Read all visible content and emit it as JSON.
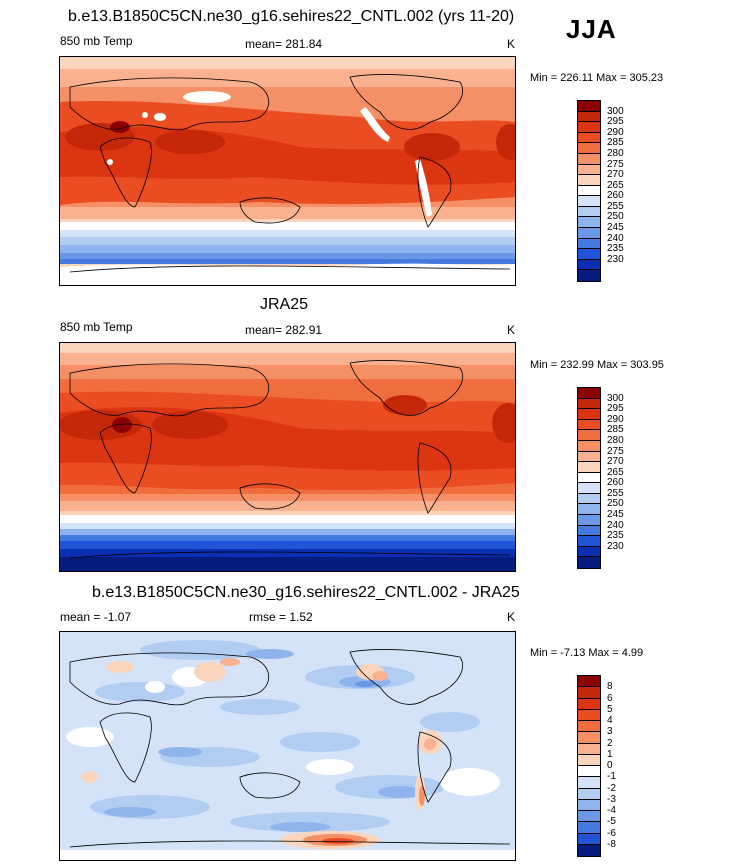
{
  "season": "JJA",
  "panels": [
    {
      "title": "b.e13.B1850C5CN.ne30_g16.sehires22_CNTL.002 (yrs 11-20)",
      "left_label": "850 mb Temp",
      "center_label": "mean= 281.84",
      "units": "K",
      "minmax": "Min = 226.11 Max = 305.23",
      "levels": [
        "300",
        "295",
        "290",
        "285",
        "280",
        "275",
        "270",
        "265",
        "260",
        "255",
        "250",
        "245",
        "240",
        "235",
        "230"
      ],
      "colors": [
        "#8b0000",
        "#c52808",
        "#dc3512",
        "#ea4d22",
        "#f06d3e",
        "#f58f66",
        "#f9b18f",
        "#fbd4bc",
        "#ffffff",
        "#d4e3f7",
        "#b1cdf2",
        "#8eb3ed",
        "#6a97e6",
        "#4479e0",
        "#2155d7",
        "#0b2fb2",
        "#051b7e"
      ],
      "chart_data": {
        "type": "heatmap",
        "field": "850 mb Temp",
        "units": "K",
        "mean": 281.84,
        "min": 226.11,
        "max": 305.23,
        "contour_levels": [
          230,
          235,
          240,
          245,
          250,
          255,
          260,
          265,
          270,
          275,
          280,
          285,
          290,
          295,
          300
        ]
      }
    },
    {
      "title": "JRA25",
      "left_label": "850 mb Temp",
      "center_label": "mean= 282.91",
      "units": "K",
      "minmax": "Min = 232.99 Max = 303.95",
      "levels": [
        "300",
        "295",
        "290",
        "285",
        "280",
        "275",
        "270",
        "265",
        "260",
        "255",
        "250",
        "245",
        "240",
        "235",
        "230"
      ],
      "colors": [
        "#8b0000",
        "#c52808",
        "#dc3512",
        "#ea4d22",
        "#f06d3e",
        "#f58f66",
        "#f9b18f",
        "#fbd4bc",
        "#ffffff",
        "#d4e3f7",
        "#b1cdf2",
        "#8eb3ed",
        "#6a97e6",
        "#4479e0",
        "#2155d7",
        "#0b2fb2",
        "#051b7e"
      ],
      "chart_data": {
        "type": "heatmap",
        "field": "850 mb Temp",
        "units": "K",
        "mean": 282.91,
        "min": 232.99,
        "max": 303.95,
        "contour_levels": [
          230,
          235,
          240,
          245,
          250,
          255,
          260,
          265,
          270,
          275,
          280,
          285,
          290,
          295,
          300
        ]
      }
    },
    {
      "title": "b.e13.B1850C5CN.ne30_g16.sehires22_CNTL.002 - JRA25",
      "left_label": "mean =  -1.07",
      "center_label": "rmse =   1.52",
      "units": "K",
      "minmax": "Min =  -7.13 Max =   4.99",
      "levels": [
        "8",
        "6",
        "5",
        "4",
        "3",
        "2",
        "1",
        "0",
        "-1",
        "-2",
        "-3",
        "-4",
        "-5",
        "-6",
        "-8"
      ],
      "colors": [
        "#8b0000",
        "#c52808",
        "#dc3512",
        "#ea4d22",
        "#f06d3e",
        "#f58f66",
        "#f9b18f",
        "#fbd4bc",
        "#ffffff",
        "#d4e3f7",
        "#b1cdf2",
        "#8eb3ed",
        "#6a97e6",
        "#4479e0",
        "#2155d7",
        "#051b7e"
      ],
      "chart_data": {
        "type": "heatmap",
        "field": "difference",
        "units": "K",
        "mean": -1.07,
        "rmse": 1.52,
        "min": -7.13,
        "max": 4.99,
        "contour_levels": [
          -8,
          -6,
          -5,
          -4,
          -3,
          -2,
          -1,
          0,
          1,
          2,
          3,
          4,
          5,
          6,
          8
        ]
      }
    }
  ]
}
